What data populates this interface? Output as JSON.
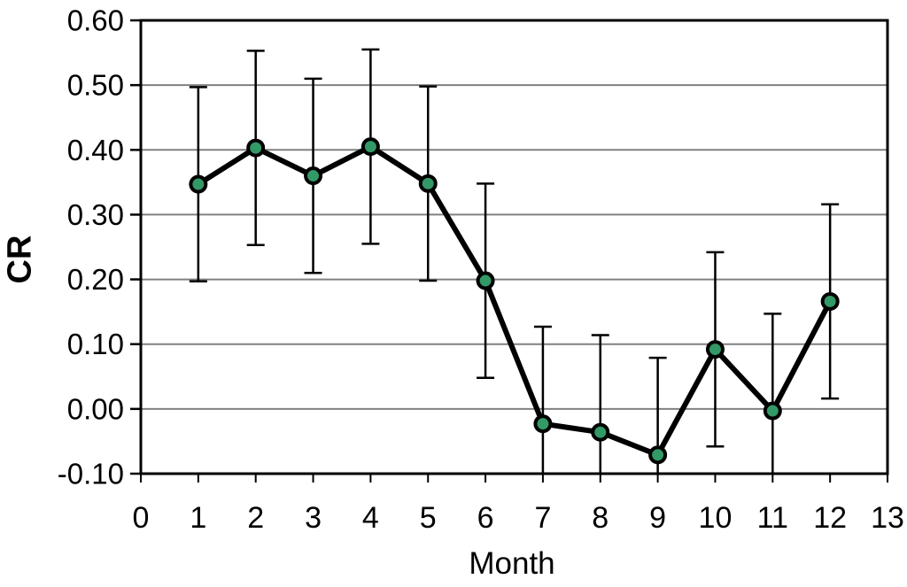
{
  "chart_data": {
    "type": "line",
    "title": "",
    "xlabel": "Month",
    "ylabel": "CR",
    "x": [
      1,
      2,
      3,
      4,
      5,
      6,
      7,
      8,
      9,
      10,
      11,
      12
    ],
    "values": [
      0.347,
      0.403,
      0.36,
      0.405,
      0.348,
      0.198,
      -0.023,
      -0.036,
      -0.071,
      0.092,
      -0.003,
      0.166
    ],
    "error": [
      0.15,
      0.15,
      0.15,
      0.15,
      0.15,
      0.15,
      0.15,
      0.15,
      0.15,
      0.15,
      0.15,
      0.15
    ],
    "xlim": [
      0,
      13
    ],
    "ylim": [
      -0.1,
      0.6
    ],
    "xticks": {
      "values": [
        0,
        1,
        2,
        3,
        4,
        5,
        6,
        7,
        8,
        9,
        10,
        11,
        12,
        13
      ],
      "labels": [
        "0",
        "1",
        "2",
        "3",
        "4",
        "5",
        "6",
        "7",
        "8",
        "9",
        "10",
        "11",
        "12",
        "13"
      ]
    },
    "yticks": {
      "values": [
        0.6,
        0.5,
        0.4,
        0.3,
        0.2,
        0.1,
        0.0,
        -0.1
      ],
      "labels": [
        "0.60",
        "0.50",
        "0.40",
        "0.30",
        "0.20",
        "0.10",
        "0.00",
        "-0.10"
      ]
    },
    "grid": "horizontal",
    "legend": "none",
    "colors": {
      "marker_fill": "#339966",
      "marker_stroke": "#000000",
      "line": "#000000",
      "grid": "#808080",
      "axis": "#000000",
      "text": "#000000",
      "background": "#ffffff"
    }
  }
}
